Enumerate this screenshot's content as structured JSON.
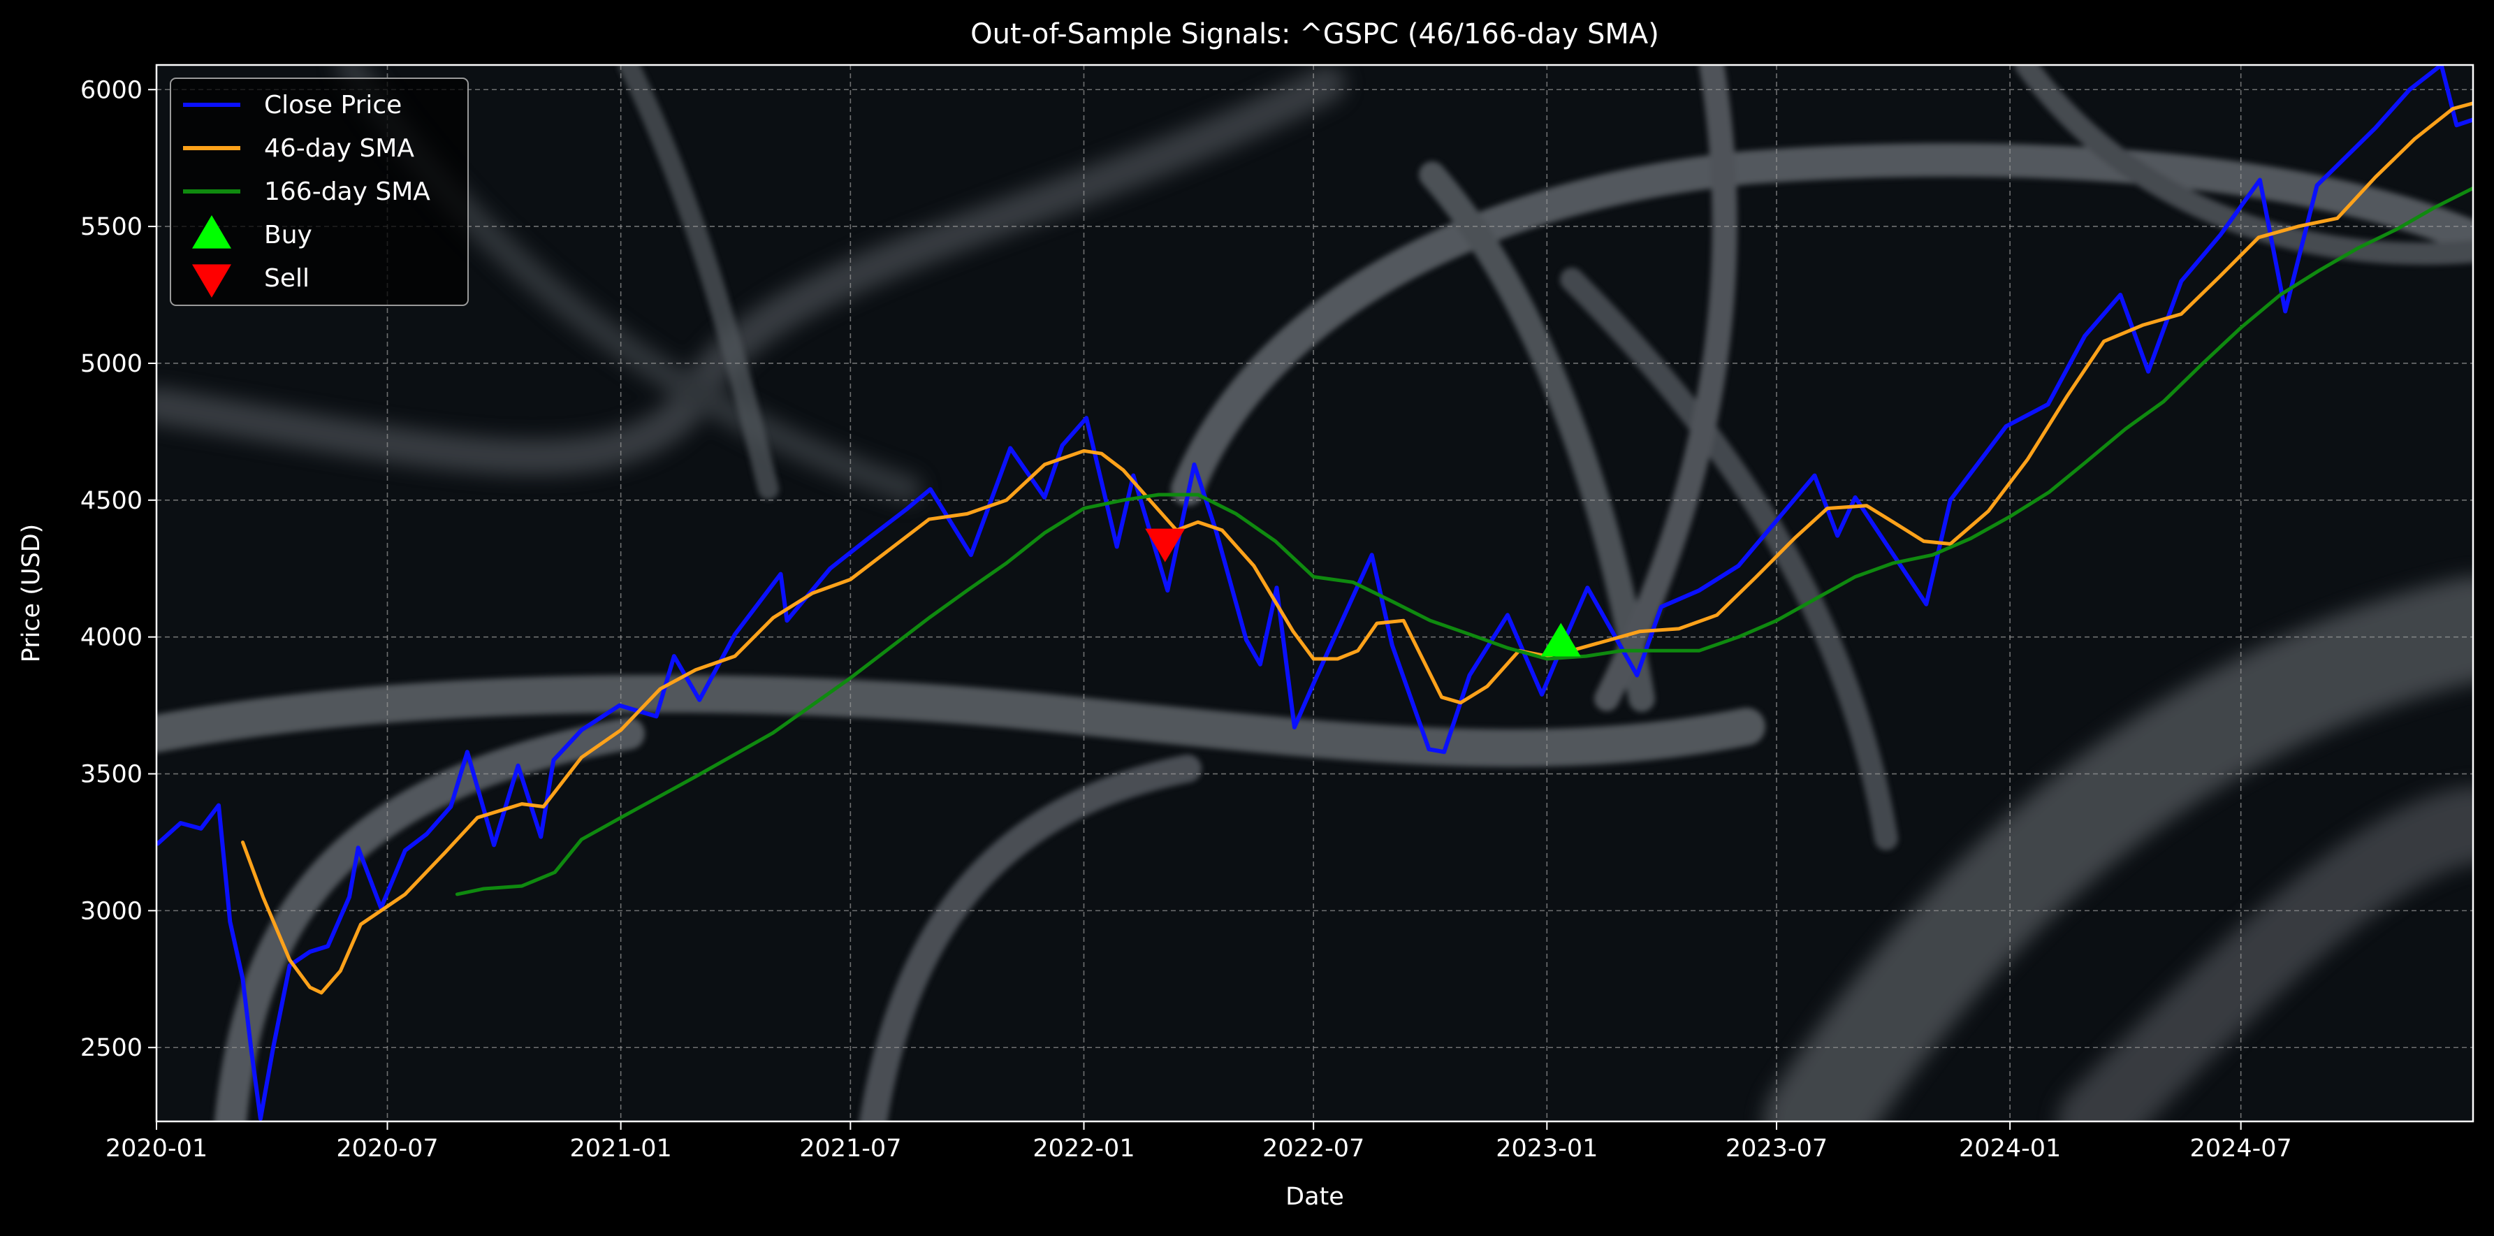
{
  "chart_data": {
    "type": "line",
    "title": "Out-of-Sample Signals: ^GSPC (46/166-day SMA)",
    "xlabel": "Date",
    "ylabel": "Price (USD)",
    "x_range": [
      "2020-01-01",
      "2024-12-31"
    ],
    "ylim": [
      2230,
      6090
    ],
    "x_ticks": [
      "2020-01",
      "2020-07",
      "2021-01",
      "2021-07",
      "2022-01",
      "2022-07",
      "2023-01",
      "2023-07",
      "2024-01",
      "2024-07"
    ],
    "y_ticks": [
      2500,
      3000,
      3500,
      4000,
      4500,
      5000,
      5500,
      6000
    ],
    "grid": true,
    "legend_position": "top-left",
    "background": "dark photo of DNA double helix strands",
    "colors": {
      "figure_bg": "#000000",
      "axes_bg": "#0b0f13",
      "text": "#ffffff",
      "grid": "#9a9a9a",
      "close": "#0a10ff",
      "sma_short": "#ffa21a",
      "sma_long": "#0f8a0f",
      "buy": "#00ff00",
      "sell": "#ff0000"
    },
    "series": [
      {
        "name": "Close Price",
        "color": "#0a10ff",
        "points": [
          [
            "2020-01-02",
            3245
          ],
          [
            "2020-01-20",
            3320
          ],
          [
            "2020-02-05",
            3300
          ],
          [
            "2020-02-19",
            3385
          ],
          [
            "2020-02-28",
            2960
          ],
          [
            "2020-03-09",
            2750
          ],
          [
            "2020-03-16",
            2480
          ],
          [
            "2020-03-23",
            2240
          ],
          [
            "2020-04-02",
            2500
          ],
          [
            "2020-04-15",
            2800
          ],
          [
            "2020-05-01",
            2850
          ],
          [
            "2020-05-15",
            2870
          ],
          [
            "2020-06-01",
            3050
          ],
          [
            "2020-06-08",
            3230
          ],
          [
            "2020-06-26",
            3010
          ],
          [
            "2020-07-15",
            3220
          ],
          [
            "2020-08-01",
            3280
          ],
          [
            "2020-08-20",
            3380
          ],
          [
            "2020-09-02",
            3580
          ],
          [
            "2020-09-23",
            3240
          ],
          [
            "2020-10-12",
            3530
          ],
          [
            "2020-10-30",
            3270
          ],
          [
            "2020-11-09",
            3550
          ],
          [
            "2020-12-01",
            3660
          ],
          [
            "2020-12-31",
            3750
          ],
          [
            "2021-01-29",
            3710
          ],
          [
            "2021-02-12",
            3930
          ],
          [
            "2021-03-04",
            3770
          ],
          [
            "2021-04-01",
            4010
          ],
          [
            "2021-05-07",
            4230
          ],
          [
            "2021-05-12",
            4060
          ],
          [
            "2021-06-15",
            4250
          ],
          [
            "2021-07-15",
            4360
          ],
          [
            "2021-08-15",
            4470
          ],
          [
            "2021-09-02",
            4540
          ],
          [
            "2021-10-04",
            4300
          ],
          [
            "2021-11-04",
            4690
          ],
          [
            "2021-12-01",
            4510
          ],
          [
            "2021-12-15",
            4700
          ],
          [
            "2022-01-03",
            4800
          ],
          [
            "2022-01-27",
            4330
          ],
          [
            "2022-02-09",
            4590
          ],
          [
            "2022-03-08",
            4170
          ],
          [
            "2022-03-29",
            4630
          ],
          [
            "2022-04-15",
            4390
          ],
          [
            "2022-05-09",
            3990
          ],
          [
            "2022-05-20",
            3900
          ],
          [
            "2022-06-02",
            4180
          ],
          [
            "2022-06-16",
            3670
          ],
          [
            "2022-07-01",
            3830
          ],
          [
            "2022-08-16",
            4300
          ],
          [
            "2022-09-01",
            3970
          ],
          [
            "2022-09-30",
            3590
          ],
          [
            "2022-10-12",
            3580
          ],
          [
            "2022-11-01",
            3860
          ],
          [
            "2022-12-01",
            4080
          ],
          [
            "2022-12-28",
            3790
          ],
          [
            "2023-01-15",
            3990
          ],
          [
            "2023-02-02",
            4180
          ],
          [
            "2023-03-13",
            3860
          ],
          [
            "2023-04-01",
            4110
          ],
          [
            "2023-05-01",
            4170
          ],
          [
            "2023-06-01",
            4260
          ],
          [
            "2023-07-31",
            4590
          ],
          [
            "2023-08-18",
            4370
          ],
          [
            "2023-09-01",
            4510
          ],
          [
            "2023-10-27",
            4120
          ],
          [
            "2023-11-15",
            4500
          ],
          [
            "2023-12-29",
            4770
          ],
          [
            "2024-01-31",
            4850
          ],
          [
            "2024-02-29",
            5100
          ],
          [
            "2024-03-28",
            5250
          ],
          [
            "2024-04-19",
            4970
          ],
          [
            "2024-05-15",
            5300
          ],
          [
            "2024-06-15",
            5470
          ],
          [
            "2024-07-16",
            5670
          ],
          [
            "2024-08-05",
            5190
          ],
          [
            "2024-08-30",
            5650
          ],
          [
            "2024-10-15",
            5860
          ],
          [
            "2024-11-11",
            6000
          ],
          [
            "2024-12-06",
            6090
          ],
          [
            "2024-12-18",
            5870
          ],
          [
            "2024-12-31",
            5890
          ]
        ]
      },
      {
        "name": "46-day SMA",
        "color": "#ffa21a",
        "points": [
          [
            "2020-03-09",
            3250
          ],
          [
            "2020-03-25",
            3050
          ],
          [
            "2020-04-15",
            2820
          ],
          [
            "2020-05-01",
            2720
          ],
          [
            "2020-05-10",
            2700
          ],
          [
            "2020-05-25",
            2780
          ],
          [
            "2020-06-10",
            2950
          ],
          [
            "2020-07-15",
            3060
          ],
          [
            "2020-08-15",
            3210
          ],
          [
            "2020-09-10",
            3340
          ],
          [
            "2020-10-15",
            3390
          ],
          [
            "2020-11-01",
            3380
          ],
          [
            "2020-12-01",
            3560
          ],
          [
            "2021-01-01",
            3660
          ],
          [
            "2021-02-01",
            3810
          ],
          [
            "2021-03-01",
            3880
          ],
          [
            "2021-04-01",
            3930
          ],
          [
            "2021-05-01",
            4070
          ],
          [
            "2021-06-01",
            4160
          ],
          [
            "2021-07-01",
            4210
          ],
          [
            "2021-08-01",
            4320
          ],
          [
            "2021-09-01",
            4430
          ],
          [
            "2021-10-01",
            4450
          ],
          [
            "2021-11-01",
            4500
          ],
          [
            "2021-12-01",
            4630
          ],
          [
            "2022-01-01",
            4680
          ],
          [
            "2022-01-15",
            4670
          ],
          [
            "2022-02-01",
            4610
          ],
          [
            "2022-02-20",
            4510
          ],
          [
            "2022-03-15",
            4390
          ],
          [
            "2022-04-01",
            4420
          ],
          [
            "2022-04-20",
            4390
          ],
          [
            "2022-05-15",
            4260
          ],
          [
            "2022-06-15",
            4020
          ],
          [
            "2022-07-01",
            3920
          ],
          [
            "2022-07-20",
            3920
          ],
          [
            "2022-08-05",
            3950
          ],
          [
            "2022-08-20",
            4050
          ],
          [
            "2022-09-10",
            4060
          ],
          [
            "2022-10-10",
            3780
          ],
          [
            "2022-10-25",
            3760
          ],
          [
            "2022-11-15",
            3820
          ],
          [
            "2022-12-10",
            3950
          ],
          [
            "2023-01-01",
            3930
          ],
          [
            "2023-01-20",
            3950
          ],
          [
            "2023-02-20",
            3990
          ],
          [
            "2023-03-15",
            4020
          ],
          [
            "2023-04-15",
            4030
          ],
          [
            "2023-05-15",
            4080
          ],
          [
            "2023-06-15",
            4220
          ],
          [
            "2023-07-15",
            4360
          ],
          [
            "2023-08-10",
            4470
          ],
          [
            "2023-09-10",
            4480
          ],
          [
            "2023-10-01",
            4420
          ],
          [
            "2023-10-25",
            4350
          ],
          [
            "2023-11-15",
            4340
          ],
          [
            "2023-12-15",
            4460
          ],
          [
            "2024-01-15",
            4650
          ],
          [
            "2024-02-15",
            4880
          ],
          [
            "2024-03-15",
            5080
          ],
          [
            "2024-04-15",
            5140
          ],
          [
            "2024-05-15",
            5180
          ],
          [
            "2024-06-15",
            5320
          ],
          [
            "2024-07-15",
            5460
          ],
          [
            "2024-08-15",
            5500
          ],
          [
            "2024-09-15",
            5530
          ],
          [
            "2024-10-15",
            5680
          ],
          [
            "2024-11-15",
            5820
          ],
          [
            "2024-12-15",
            5930
          ],
          [
            "2024-12-31",
            5950
          ]
        ]
      },
      {
        "name": "166-day SMA",
        "color": "#0f8a0f",
        "points": [
          [
            "2020-08-25",
            3060
          ],
          [
            "2020-09-15",
            3080
          ],
          [
            "2020-10-15",
            3090
          ],
          [
            "2020-11-10",
            3140
          ],
          [
            "2020-12-01",
            3260
          ],
          [
            "2021-01-01",
            3340
          ],
          [
            "2021-03-01",
            3490
          ],
          [
            "2021-05-01",
            3650
          ],
          [
            "2021-07-01",
            3850
          ],
          [
            "2021-09-01",
            4070
          ],
          [
            "2021-10-01",
            4170
          ],
          [
            "2021-11-01",
            4270
          ],
          [
            "2021-12-01",
            4380
          ],
          [
            "2022-01-01",
            4470
          ],
          [
            "2022-02-01",
            4500
          ],
          [
            "2022-03-01",
            4520
          ],
          [
            "2022-04-01",
            4520
          ],
          [
            "2022-05-01",
            4450
          ],
          [
            "2022-06-01",
            4350
          ],
          [
            "2022-07-01",
            4220
          ],
          [
            "2022-08-01",
            4200
          ],
          [
            "2022-09-01",
            4130
          ],
          [
            "2022-10-01",
            4060
          ],
          [
            "2022-11-01",
            4010
          ],
          [
            "2022-12-01",
            3960
          ],
          [
            "2023-01-01",
            3920
          ],
          [
            "2023-02-01",
            3930
          ],
          [
            "2023-03-01",
            3950
          ],
          [
            "2023-04-01",
            3950
          ],
          [
            "2023-05-01",
            3950
          ],
          [
            "2023-06-01",
            4000
          ],
          [
            "2023-07-01",
            4060
          ],
          [
            "2023-08-01",
            4140
          ],
          [
            "2023-09-01",
            4220
          ],
          [
            "2023-10-01",
            4270
          ],
          [
            "2023-11-01",
            4300
          ],
          [
            "2023-12-01",
            4360
          ],
          [
            "2024-01-01",
            4440
          ],
          [
            "2024-02-01",
            4530
          ],
          [
            "2024-03-01",
            4640
          ],
          [
            "2024-04-01",
            4760
          ],
          [
            "2024-05-01",
            4860
          ],
          [
            "2024-06-01",
            5000
          ],
          [
            "2024-07-01",
            5130
          ],
          [
            "2024-08-01",
            5250
          ],
          [
            "2024-09-01",
            5340
          ],
          [
            "2024-10-01",
            5420
          ],
          [
            "2024-11-01",
            5490
          ],
          [
            "2024-12-01",
            5570
          ],
          [
            "2024-12-31",
            5640
          ]
        ]
      }
    ],
    "signals": [
      {
        "name": "Sell",
        "type": "sell",
        "date": "2022-03-06",
        "value": 4350,
        "color": "#ff0000"
      },
      {
        "name": "Buy",
        "type": "buy",
        "date": "2023-01-12",
        "value": 3975,
        "color": "#00ff00"
      }
    ],
    "legend": [
      {
        "label": "Close Price",
        "kind": "line",
        "color": "#0a10ff"
      },
      {
        "label": "46-day SMA",
        "kind": "line",
        "color": "#ffa21a"
      },
      {
        "label": "166-day SMA",
        "kind": "line",
        "color": "#0f8a0f"
      },
      {
        "label": "Buy",
        "kind": "buy",
        "color": "#00ff00"
      },
      {
        "label": "Sell",
        "kind": "sell",
        "color": "#ff0000"
      }
    ]
  }
}
